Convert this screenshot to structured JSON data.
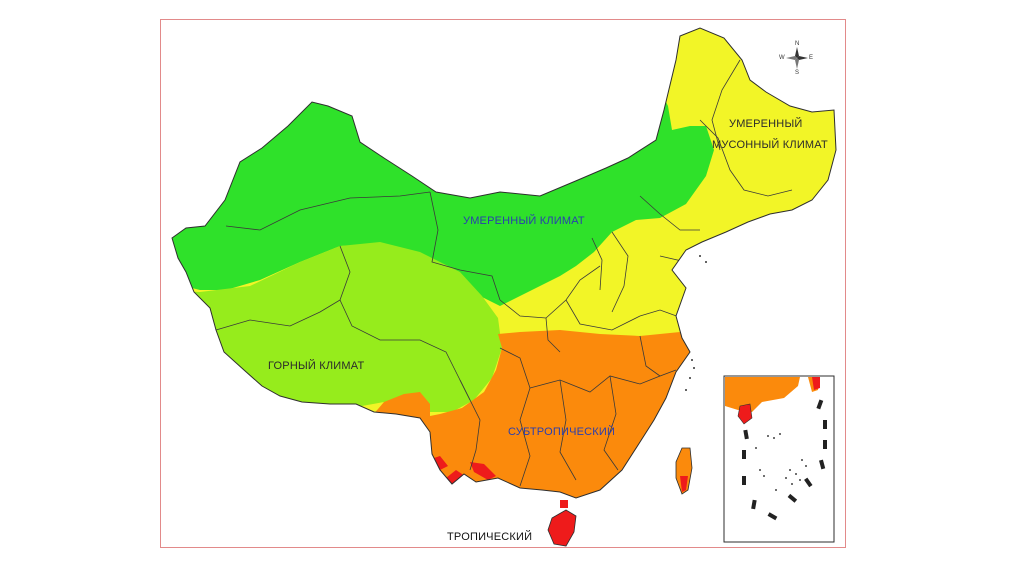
{
  "labels": {
    "temperate_monsoon_line1": "УМЕРЕННЫЙ",
    "temperate_monsoon_line2": "МУСОННЫЙ КЛИМАТ",
    "temperate": "УМЕРЕННЫЙ КЛИМАТ",
    "mountain": "ГОРНЫЙ КЛИМАТ",
    "subtropical": "СУБТРОПИЧЕСКИЙ",
    "tropical": "ТРОПИЧЕСКИЙ"
  },
  "compass": {
    "n": "N",
    "e": "E",
    "s": "S",
    "w": "W"
  },
  "colors": {
    "temperate_monsoon": "#f2f527",
    "temperate": "#2fe12a",
    "mountain": "#96ec1c",
    "subtropical": "#fb8a0c",
    "tropical": "#ee1b1b",
    "frame": "#e28a8a",
    "borders": "#3a3a3a"
  }
}
